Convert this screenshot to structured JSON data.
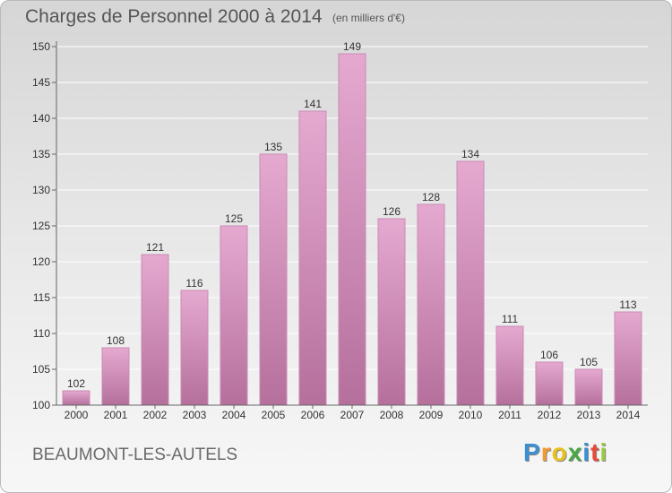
{
  "title": "Charges de Personnel 2000 à 2014",
  "subtitle": "(en milliers d'€)",
  "city": "BEAUMONT-LES-AUTELS",
  "logo": {
    "letters": [
      "P",
      "r",
      "o",
      "x",
      "i",
      "t",
      "i"
    ],
    "colors": [
      "#3d8fd1",
      "#f29a2e",
      "#e8c21b",
      "#4aa843",
      "#3d8fd1",
      "#e84b3a",
      "#9bcb3b"
    ]
  },
  "colors": {
    "bar_top": "#e5a9d0",
    "bar_bottom": "#b5709c",
    "bar_edge": "#c98bb3",
    "axis": "#666666",
    "grid": "#ffffff",
    "text": "#333333"
  },
  "chart_data": {
    "type": "bar",
    "categories": [
      "2000",
      "2001",
      "2002",
      "2003",
      "2004",
      "2005",
      "2006",
      "2007",
      "2008",
      "2009",
      "2010",
      "2011",
      "2012",
      "2013",
      "2014"
    ],
    "values": [
      102,
      108,
      121,
      116,
      125,
      135,
      141,
      149,
      126,
      128,
      134,
      111,
      106,
      105,
      113
    ],
    "data_labels": [
      "102",
      "108",
      "121",
      "116",
      "125",
      "135",
      "141",
      "149",
      "126",
      "128",
      "134",
      "111",
      "106",
      "105",
      "113"
    ],
    "yticks": [
      "100",
      "105",
      "110",
      "115",
      "120",
      "125",
      "130",
      "135",
      "140",
      "145",
      "150"
    ],
    "ylim": [
      100,
      150
    ],
    "title": "Charges de Personnel 2000 à 2014",
    "xlabel": "",
    "ylabel": "",
    "grid": true,
    "legend": "none"
  }
}
